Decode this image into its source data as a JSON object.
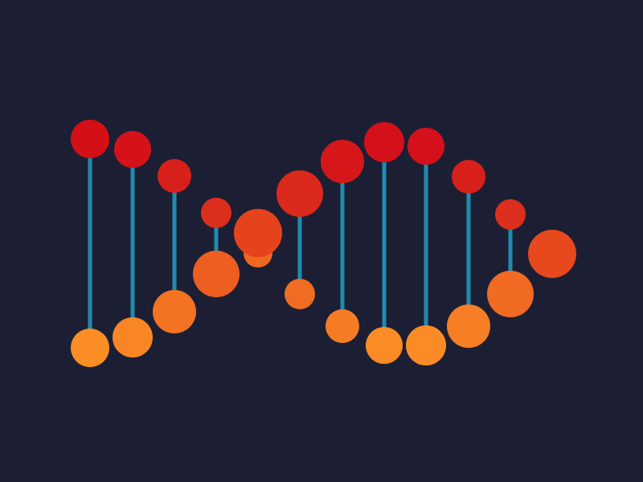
{
  "colors": {
    "background": "#1c1f33",
    "rung": "#1f8bb0",
    "top_strand": "#d4101a",
    "mid_strand": "#e5441c",
    "bottom_strand": "#fb8c24"
  }
}
